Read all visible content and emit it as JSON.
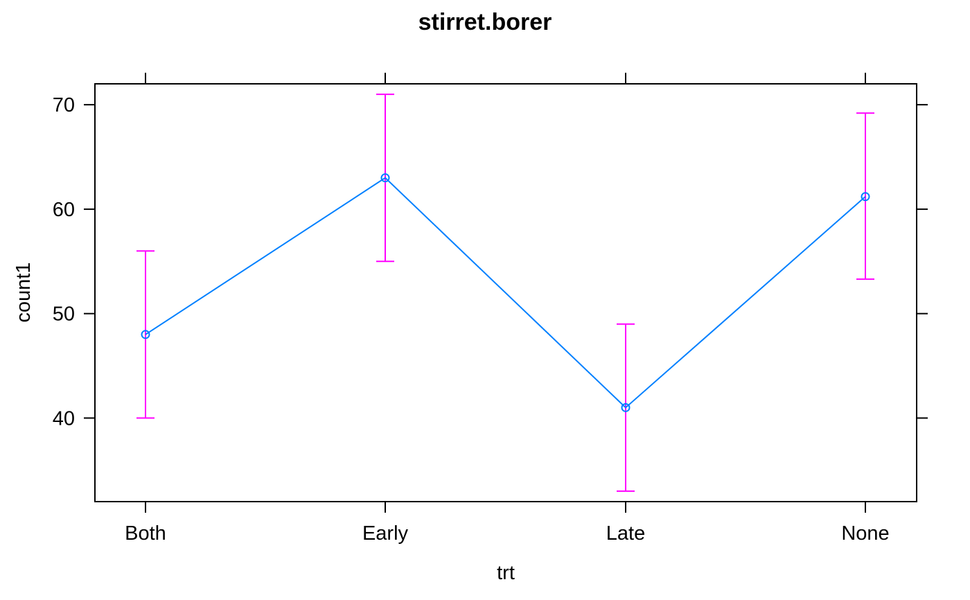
{
  "chart_data": {
    "type": "line",
    "title": "stirret.borer",
    "xlabel": "trt",
    "ylabel": "count1",
    "categories": [
      "Both",
      "Early",
      "Late",
      "None"
    ],
    "series": [
      {
        "values": [
          48,
          63,
          41,
          61.2
        ],
        "lower": [
          40,
          55,
          33,
          53.3
        ],
        "upper": [
          56,
          71,
          49,
          69.2
        ]
      }
    ],
    "yticks": [
      40,
      50,
      60,
      70
    ],
    "ylim": [
      32,
      72
    ],
    "grid": false,
    "line_color": "#0080ff",
    "errorbar_color": "#ff00ff",
    "axis_color": "#000000"
  }
}
